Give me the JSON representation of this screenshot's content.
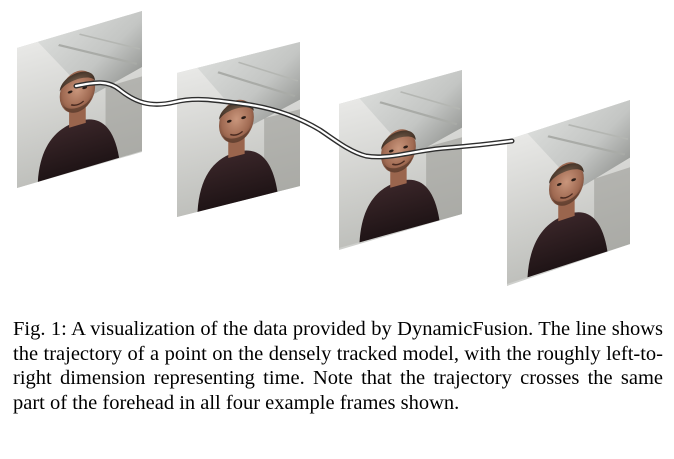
{
  "figure": {
    "frame_count": 4,
    "trajectory_description": "trajectory"
  },
  "caption": {
    "label": "Fig. 1:",
    "text": "A visualization of the data provided by DynamicFusion. The line shows the trajectory of a point on the densely tracked model, with the roughly left-to-right dimension representing time. Note that the trajectory crosses the same part of the forehead in all four example frames shown."
  },
  "colors": {
    "trajectory_line": "#ffffff",
    "trajectory_outline": "#333333",
    "caption_text": "#000000"
  }
}
